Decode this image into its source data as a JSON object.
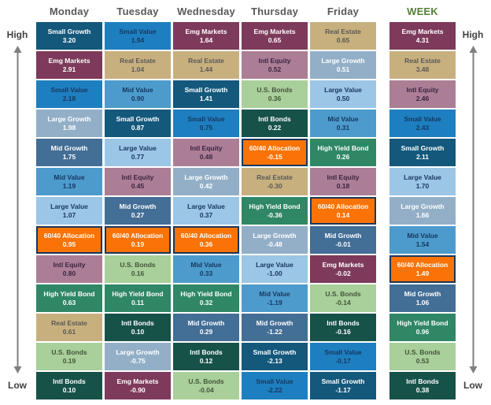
{
  "axis": {
    "high_label": "High",
    "low_label": "Low",
    "arrow_color": "#7f7f7f",
    "label_color": "#404040"
  },
  "header": {
    "day_color": "#595959",
    "week_color": "#538135"
  },
  "asset_styles": {
    "Small Growth": {
      "bg": "#14587C",
      "fg": "#FFFFFF"
    },
    "Small Value": {
      "bg": "#1E7FC0",
      "fg": "#17375E"
    },
    "Emg Markets": {
      "bg": "#7D3A5A",
      "fg": "#FFFFFF"
    },
    "Real Estate": {
      "bg": "#C8B07E",
      "fg": "#595959"
    },
    "Mid Value": {
      "bg": "#4C9BCC",
      "fg": "#17375E"
    },
    "Large Growth": {
      "bg": "#92AFC7",
      "fg": "#FFFFFF"
    },
    "Mid Growth": {
      "bg": "#436E96",
      "fg": "#FFFFFF"
    },
    "Large Value": {
      "bg": "#9CC6E5",
      "fg": "#17375E"
    },
    "Intl Equity": {
      "bg": "#AC7E96",
      "fg": "#3A2540"
    },
    "U.S. Bonds": {
      "bg": "#A9CF9A",
      "fg": "#44553B"
    },
    "Intl Bonds": {
      "bg": "#175249",
      "fg": "#FFFFFF"
    },
    "High Yield Bond": {
      "bg": "#2F8766",
      "fg": "#FFFFFF"
    },
    "60/40 Allocation": {
      "bg": "#F97306",
      "fg": "#FFFFFF",
      "border": "#17375D"
    }
  },
  "chart_data": {
    "type": "table",
    "title": "",
    "rank_axis": {
      "top": "High",
      "bottom": "Low"
    },
    "columns": [
      {
        "label": "Monday",
        "is_week": false,
        "cells": [
          {
            "name": "Small Growth",
            "value": "3.20"
          },
          {
            "name": "Emg Markets",
            "value": "2.91"
          },
          {
            "name": "Small Value",
            "value": "2.18"
          },
          {
            "name": "Large Growth",
            "value": "1.98"
          },
          {
            "name": "Mid Growth",
            "value": "1.75"
          },
          {
            "name": "Mid Value",
            "value": "1.19"
          },
          {
            "name": "Large Value",
            "value": "1.07"
          },
          {
            "name": "60/40 Allocation",
            "value": "0.95"
          },
          {
            "name": "Intl Equity",
            "value": "0.80"
          },
          {
            "name": "High Yield Bond",
            "value": "0.63"
          },
          {
            "name": "Real Estate",
            "value": "0.61"
          },
          {
            "name": "U.S. Bonds",
            "value": "0.19"
          },
          {
            "name": "Intl Bonds",
            "value": "0.10"
          }
        ]
      },
      {
        "label": "Tuesday",
        "is_week": false,
        "cells": [
          {
            "name": "Small Value",
            "value": "1.94"
          },
          {
            "name": "Real Estate",
            "value": "1.04"
          },
          {
            "name": "Mid Value",
            "value": "0.90"
          },
          {
            "name": "Small Growth",
            "value": "0.87"
          },
          {
            "name": "Large Value",
            "value": "0.77"
          },
          {
            "name": "Intl Equity",
            "value": "0.45"
          },
          {
            "name": "Mid Growth",
            "value": "0.27"
          },
          {
            "name": "60/40 Allocation",
            "value": "0.19"
          },
          {
            "name": "U.S. Bonds",
            "value": "0.16"
          },
          {
            "name": "High Yield Bond",
            "value": "0.11"
          },
          {
            "name": "Intl Bonds",
            "value": "0.10"
          },
          {
            "name": "Large Growth",
            "value": "-0.75"
          },
          {
            "name": "Emg Markets",
            "value": "-0.90"
          }
        ]
      },
      {
        "label": "Wednesday",
        "is_week": false,
        "cells": [
          {
            "name": "Emg Markets",
            "value": "1.64"
          },
          {
            "name": "Real Estate",
            "value": "1.44"
          },
          {
            "name": "Small Growth",
            "value": "1.41"
          },
          {
            "name": "Small Value",
            "value": "0.75"
          },
          {
            "name": "Intl Equity",
            "value": "0.48"
          },
          {
            "name": "Large Growth",
            "value": "0.42"
          },
          {
            "name": "Large Value",
            "value": "0.37"
          },
          {
            "name": "60/40 Allocation",
            "value": "0.36"
          },
          {
            "name": "Mid Value",
            "value": "0.33"
          },
          {
            "name": "High Yield Bond",
            "value": "0.32"
          },
          {
            "name": "Mid Growth",
            "value": "0.29"
          },
          {
            "name": "Intl Bonds",
            "value": "0.12"
          },
          {
            "name": "U.S. Bonds",
            "value": "-0.04"
          }
        ]
      },
      {
        "label": "Thursday",
        "is_week": false,
        "cells": [
          {
            "name": "Emg Markets",
            "value": "0.65"
          },
          {
            "name": "Intl Equity",
            "value": "0.52"
          },
          {
            "name": "U.S. Bonds",
            "value": "0.36"
          },
          {
            "name": "Intl Bonds",
            "value": "0.22"
          },
          {
            "name": "60/40 Allocation",
            "value": "-0.15"
          },
          {
            "name": "Real Estate",
            "value": "-0.30"
          },
          {
            "name": "High Yield Bond",
            "value": "-0.36"
          },
          {
            "name": "Large Growth",
            "value": "-0.48"
          },
          {
            "name": "Large Value",
            "value": "-1.00"
          },
          {
            "name": "Mid Value",
            "value": "-1.19"
          },
          {
            "name": "Mid Growth",
            "value": "-1.22"
          },
          {
            "name": "Small Growth",
            "value": "-2.13"
          },
          {
            "name": "Small Value",
            "value": "-2.22"
          }
        ]
      },
      {
        "label": "Friday",
        "is_week": false,
        "cells": [
          {
            "name": "Real Estate",
            "value": "0.65"
          },
          {
            "name": "Large Growth",
            "value": "0.51"
          },
          {
            "name": "Large Value",
            "value": "0.50"
          },
          {
            "name": "Mid Value",
            "value": "0.31"
          },
          {
            "name": "High Yield Bond",
            "value": "0.26"
          },
          {
            "name": "Intl Equity",
            "value": "0.18"
          },
          {
            "name": "60/40 Allocation",
            "value": "0.14"
          },
          {
            "name": "Mid Growth",
            "value": "-0.01"
          },
          {
            "name": "Emg Markets",
            "value": "-0.02"
          },
          {
            "name": "U.S. Bonds",
            "value": "-0.14"
          },
          {
            "name": "Intl Bonds",
            "value": "-0.16"
          },
          {
            "name": "Small Value",
            "value": "-0.17"
          },
          {
            "name": "Small Growth",
            "value": "-1.17"
          }
        ]
      },
      {
        "label": "WEEK",
        "is_week": true,
        "cells": [
          {
            "name": "Emg Markets",
            "value": "4.31"
          },
          {
            "name": "Real Estate",
            "value": "3.48"
          },
          {
            "name": "Intl Equity",
            "value": "2.46"
          },
          {
            "name": "Small Value",
            "value": "2.43"
          },
          {
            "name": "Small Growth",
            "value": "2.11"
          },
          {
            "name": "Large Value",
            "value": "1.70"
          },
          {
            "name": "Large Growth",
            "value": "1.66"
          },
          {
            "name": "Mid Value",
            "value": "1.54"
          },
          {
            "name": "60/40 Allocation",
            "value": "1.49"
          },
          {
            "name": "Mid Growth",
            "value": "1.06"
          },
          {
            "name": "High Yield Bond",
            "value": "0.96"
          },
          {
            "name": "U.S. Bonds",
            "value": "0.53"
          },
          {
            "name": "Intl Bonds",
            "value": "0.38"
          }
        ]
      }
    ]
  }
}
